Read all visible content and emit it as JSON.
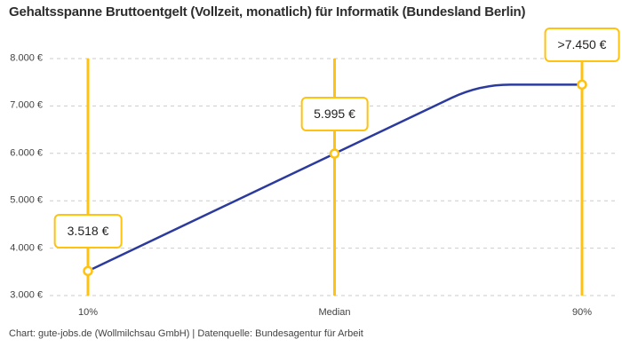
{
  "page": {
    "title": "Gehaltsspanne Bruttoentgelt (Vollzeit, monatlich) für Informatik (Bundesland Berlin)",
    "attribution": "Chart: gute-jobs.de (Wollmilchsau GmbH) | Datenquelle: Bundesagentur für Arbeit"
  },
  "colors": {
    "accent_yellow": "#FFC20E",
    "series_blue": "#2B3A9D",
    "grid_gray": "#CBCBCB",
    "title_text": "#2D2D2D",
    "axis_text": "#424242",
    "label_text": "#1F1F1F",
    "background": "#FFFFFF"
  },
  "chart_data": {
    "type": "line",
    "title": "Gehaltsspanne Bruttoentgelt (Vollzeit, monatlich) für Informatik (Bundesland Berlin)",
    "categories": [
      "10%",
      "Median",
      "90%"
    ],
    "values": [
      3518,
      5995,
      7450
    ],
    "value_labels": [
      "3.518 €",
      "5.995 €",
      ">7.450 €"
    ],
    "curve_shape": "rises linearly from 10% through Median, then plateaus at 7450 before the 90% marker (top value is open-ended)",
    "ylim": [
      3000,
      8000
    ],
    "yticks": [
      8000,
      7000,
      6000,
      5000,
      4000,
      3000
    ],
    "ytick_labels": [
      "8.000 €",
      "7.000 €",
      "6.000 €",
      "5.000 €",
      "4.000 €",
      "3.000 €"
    ],
    "xlabel": "",
    "ylabel": "",
    "grid": "horizontal dashed",
    "legend": "none",
    "markers": "open circles with yellow ring at each percentile",
    "annotation_style": "white boxes with yellow border above each data point on vertical yellow percentile lines"
  }
}
